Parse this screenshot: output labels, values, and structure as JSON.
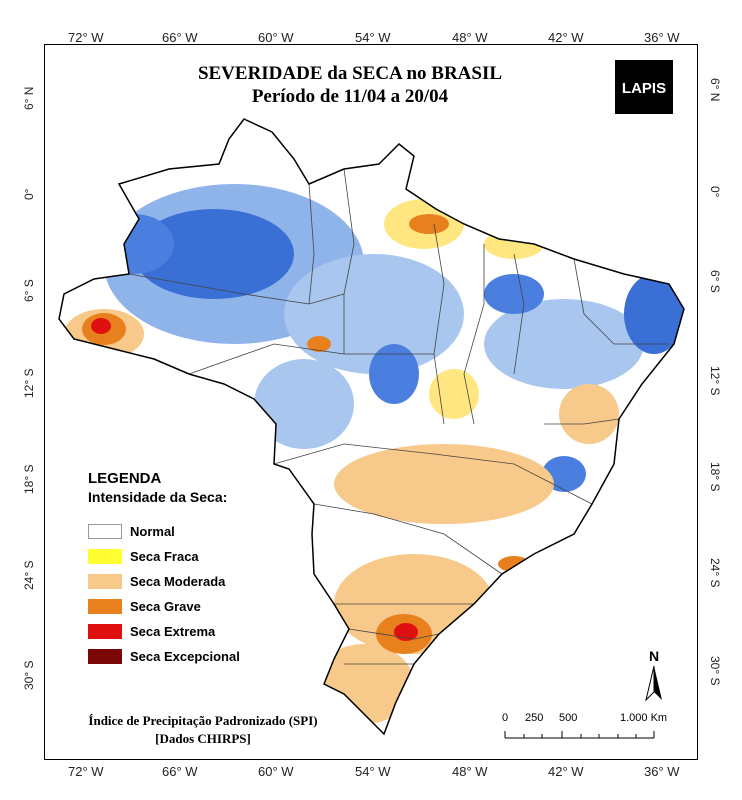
{
  "title": {
    "line1": "SEVERIDADE da SECA no BRASIL",
    "line2": "Período de 11/04 a 20/04"
  },
  "logo": "LAPIS",
  "lon_labels": [
    "72° W",
    "66° W",
    "60° W",
    "54° W",
    "48° W",
    "42° W",
    "36° W"
  ],
  "lat_labels": [
    "6° N",
    "0°",
    "6° S",
    "12° S",
    "18° S",
    "24° S",
    "30° S"
  ],
  "legend": {
    "title": "LEGENDA",
    "subtitle": "Intensidade da Seca:",
    "items": [
      {
        "label": "Normal",
        "color": "#ffffff"
      },
      {
        "label": "Seca Fraca",
        "color": "#ffff33"
      },
      {
        "label": "Seca Moderada",
        "color": "#f7c98a"
      },
      {
        "label": "Seca Grave",
        "color": "#e8801e"
      },
      {
        "label": "Seca Extrema",
        "color": "#e01010"
      },
      {
        "label": "Seca Excepcional",
        "color": "#7a0606"
      }
    ]
  },
  "footer": {
    "line1": "Índice de Precipitação Padronizado (SPI)",
    "line2": "[Dados CHIRPS]"
  },
  "scale": {
    "ticks": [
      "0",
      "250",
      "500",
      "1.000 Km"
    ]
  },
  "north": "N",
  "colors": {
    "wet_strong": "#3a6fd6",
    "wet_light": "#8fb4ea",
    "drought_moderate": "#f7c98a",
    "drought_weak": "#ffe680",
    "drought_severe": "#e8801e",
    "drought_extreme": "#e01010"
  }
}
